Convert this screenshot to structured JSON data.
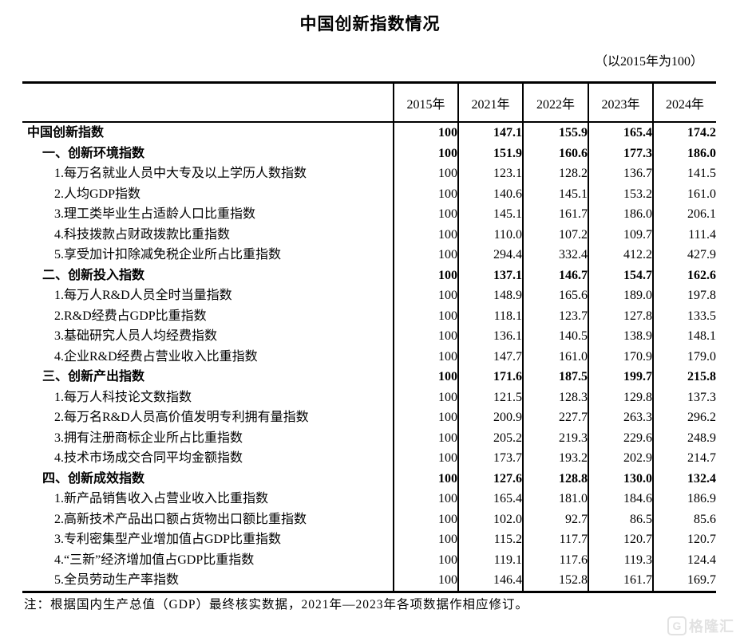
{
  "colors": {
    "text": "#000000",
    "border": "#000000",
    "background": "#ffffff",
    "watermark": "#e2e2e2"
  },
  "watermark": {
    "logo_letter": "G",
    "text": "格隆汇"
  },
  "chart_data": {
    "type": "table",
    "title": "中国创新指数情况",
    "subtitle": "（以2015年为100）",
    "note": "注：根据国内生产总值（GDP）最终核实数据，2021年—2023年各项数据作相应修订。",
    "base_year_value": 100,
    "columns": [
      "2015年",
      "2021年",
      "2022年",
      "2023年",
      "2024年"
    ],
    "row_header": "",
    "rows": [
      {
        "label": "中国创新指数",
        "indent": 0,
        "bold": true,
        "values": [
          "100",
          "147.1",
          "155.9",
          "165.4",
          "174.2"
        ]
      },
      {
        "label": "一、创新环境指数",
        "indent": 1,
        "bold": true,
        "values": [
          "100",
          "151.9",
          "160.6",
          "177.3",
          "186.0"
        ]
      },
      {
        "label": "1.每万名就业人员中大专及以上学历人数指数",
        "indent": 2,
        "bold": false,
        "values": [
          "100",
          "123.1",
          "128.2",
          "136.7",
          "141.5"
        ]
      },
      {
        "label": "2.人均GDP指数",
        "indent": 2,
        "bold": false,
        "values": [
          "100",
          "140.6",
          "145.1",
          "153.2",
          "161.0"
        ]
      },
      {
        "label": "3.理工类毕业生占适龄人口比重指数",
        "indent": 2,
        "bold": false,
        "values": [
          "100",
          "145.1",
          "161.7",
          "186.0",
          "206.1"
        ]
      },
      {
        "label": "4.科技拨款占财政拨款比重指数",
        "indent": 2,
        "bold": false,
        "values": [
          "100",
          "110.0",
          "107.2",
          "109.7",
          "111.4"
        ]
      },
      {
        "label": "5.享受加计扣除减免税企业所占比重指数",
        "indent": 2,
        "bold": false,
        "values": [
          "100",
          "294.4",
          "332.4",
          "412.2",
          "427.9"
        ]
      },
      {
        "label": "二、创新投入指数",
        "indent": 1,
        "bold": true,
        "values": [
          "100",
          "137.1",
          "146.7",
          "154.7",
          "162.6"
        ]
      },
      {
        "label": "1.每万人R&D人员全时当量指数",
        "indent": 2,
        "bold": false,
        "values": [
          "100",
          "148.9",
          "165.6",
          "189.0",
          "197.8"
        ]
      },
      {
        "label": "2.R&D经费占GDP比重指数",
        "indent": 2,
        "bold": false,
        "values": [
          "100",
          "118.1",
          "123.7",
          "127.8",
          "133.5"
        ]
      },
      {
        "label": "3.基础研究人员人均经费指数",
        "indent": 2,
        "bold": false,
        "values": [
          "100",
          "136.1",
          "140.5",
          "138.9",
          "148.1"
        ]
      },
      {
        "label": "4.企业R&D经费占营业收入比重指数",
        "indent": 2,
        "bold": false,
        "values": [
          "100",
          "147.7",
          "161.0",
          "170.9",
          "179.0"
        ]
      },
      {
        "label": "三、创新产出指数",
        "indent": 1,
        "bold": true,
        "values": [
          "100",
          "171.6",
          "187.5",
          "199.7",
          "215.8"
        ]
      },
      {
        "label": "1.每万人科技论文数指数",
        "indent": 2,
        "bold": false,
        "values": [
          "100",
          "121.5",
          "128.3",
          "129.8",
          "137.3"
        ]
      },
      {
        "label": "2.每万名R&D人员高价值发明专利拥有量指数",
        "indent": 2,
        "bold": false,
        "values": [
          "100",
          "200.9",
          "227.7",
          "263.3",
          "296.2"
        ]
      },
      {
        "label": "3.拥有注册商标企业所占比重指数",
        "indent": 2,
        "bold": false,
        "values": [
          "100",
          "205.2",
          "219.3",
          "229.6",
          "248.9"
        ]
      },
      {
        "label": "4.技术市场成交合同平均金额指数",
        "indent": 2,
        "bold": false,
        "values": [
          "100",
          "173.7",
          "193.2",
          "202.9",
          "214.7"
        ]
      },
      {
        "label": "四、创新成效指数",
        "indent": 1,
        "bold": true,
        "values": [
          "100",
          "127.6",
          "128.8",
          "130.0",
          "132.4"
        ]
      },
      {
        "label": "1.新产品销售收入占营业收入比重指数",
        "indent": 2,
        "bold": false,
        "values": [
          "100",
          "165.4",
          "181.0",
          "184.6",
          "186.9"
        ]
      },
      {
        "label": "2.高新技术产品出口额占货物出口额比重指数",
        "indent": 2,
        "bold": false,
        "values": [
          "100",
          "102.0",
          "92.7",
          "86.5",
          "85.6"
        ]
      },
      {
        "label": "3.专利密集型产业增加值占GDP比重指数",
        "indent": 2,
        "bold": false,
        "values": [
          "100",
          "115.2",
          "117.7",
          "120.7",
          "120.7"
        ]
      },
      {
        "label": "4.“三新”经济增加值占GDP比重指数",
        "indent": 2,
        "bold": false,
        "values": [
          "100",
          "119.1",
          "117.6",
          "119.3",
          "124.4"
        ]
      },
      {
        "label": "5.全员劳动生产率指数",
        "indent": 2,
        "bold": false,
        "values": [
          "100",
          "146.4",
          "152.8",
          "161.7",
          "169.7"
        ]
      }
    ]
  }
}
